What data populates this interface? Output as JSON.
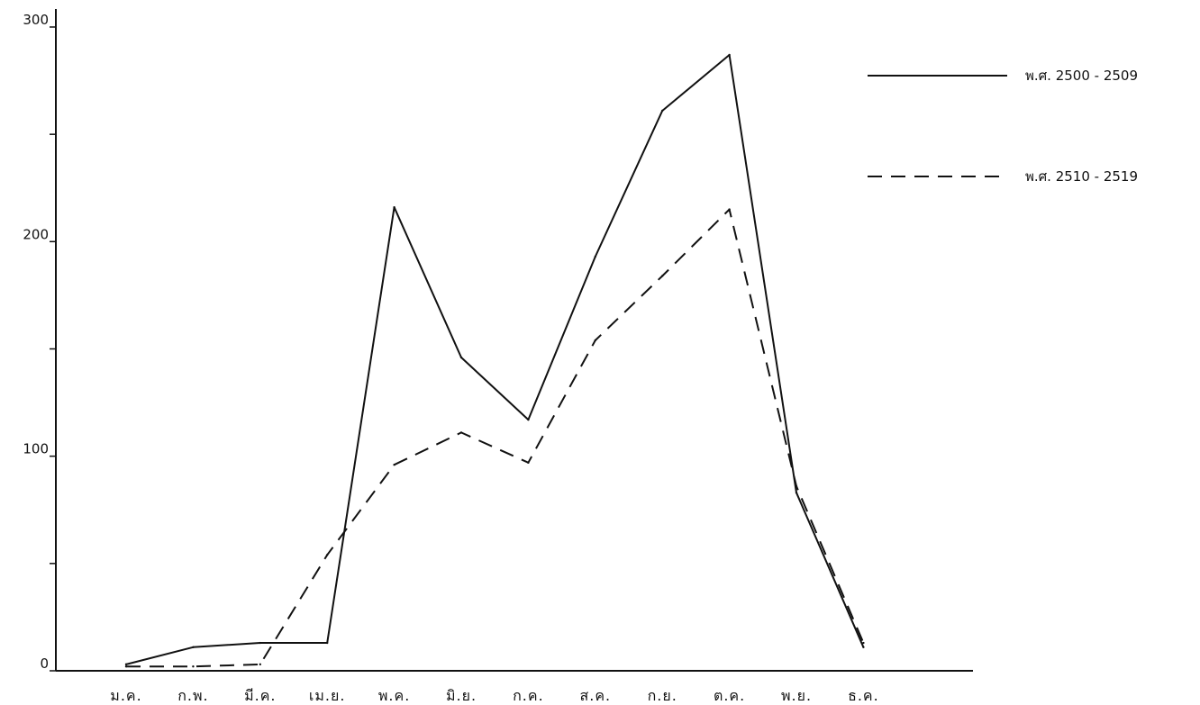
{
  "chart_data": {
    "type": "line",
    "categories": [
      "ม.ค.",
      "ก.พ.",
      "มี.ค.",
      "เม.ย.",
      "พ.ค.",
      "มิ.ย.",
      "ก.ค.",
      "ส.ค.",
      "ก.ย.",
      "ต.ค.",
      "พ.ย.",
      "ธ.ค."
    ],
    "series": [
      {
        "name": "พ.ศ. 2500 - 2509",
        "style": "solid",
        "values": [
          3,
          11,
          13,
          13,
          216,
          146,
          117,
          193,
          261,
          287,
          83,
          11
        ]
      },
      {
        "name": "พ.ศ. 2510 - 2519",
        "style": "dashed",
        "values": [
          2,
          2,
          3,
          54,
          96,
          111,
          97,
          154,
          184,
          215,
          86,
          13
        ]
      }
    ],
    "y_ticks": [
      0,
      50,
      100,
      150,
      200,
      250,
      300
    ],
    "y_tick_labels": [
      "0",
      "",
      "100",
      "",
      "200",
      "",
      "300"
    ],
    "ylim": [
      0,
      300
    ],
    "grid": false,
    "legend_position": "right",
    "color": "#111111"
  }
}
